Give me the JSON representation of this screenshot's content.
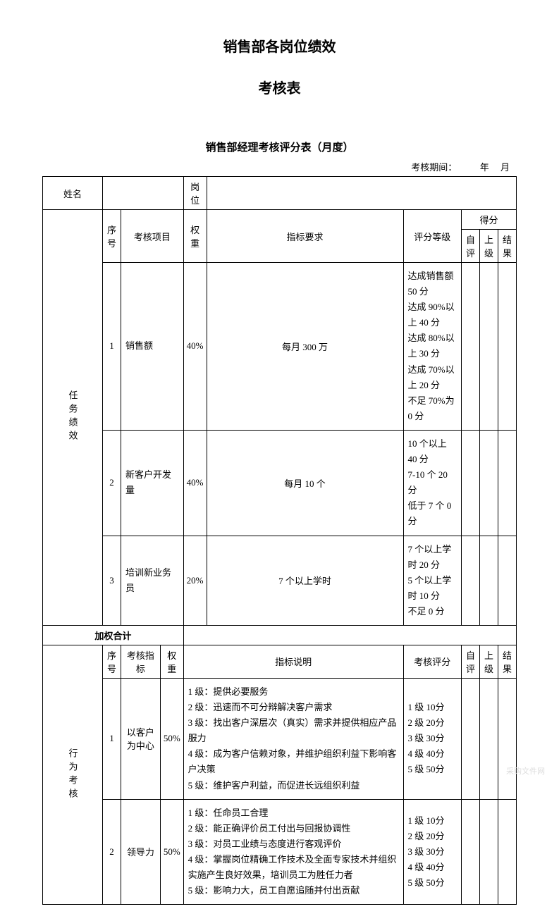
{
  "header": {
    "title1": "销售部各岗位绩效",
    "title2": "考核表",
    "subtitle": "销售部经理考核评分表（月度）",
    "periodLabel": "考核期间：",
    "yearLabel": "年",
    "monthLabel": "月"
  },
  "row1": {
    "nameLabel": "姓名",
    "positionLabel": "岗位"
  },
  "headers": {
    "seqNo": "序号",
    "assessItem": "考核项目",
    "weight": "权重",
    "indicatorReq": "指标要求",
    "scoringLevel": "评分等级",
    "score": "得分",
    "selfEval": "自评",
    "supervisor": "上级",
    "result": "结果",
    "assessIndicator": "考核指标",
    "indicatorDesc": "指标说明",
    "assessScore": "考核评分"
  },
  "sectionA": {
    "label": "任务绩效",
    "rows": [
      {
        "no": "1",
        "item": "销售额",
        "weight": "40%",
        "requirement": "每月 300 万",
        "levels": "达成销售额 50 分\n达成 90%以上 40 分\n达成 80%以上 30 分\n达成 70%以上 20 分\n不足 70%为 0 分"
      },
      {
        "no": "2",
        "item": "新客户开发量",
        "weight": "40%",
        "requirement": "每月 10 个",
        "levels": "10 个以上 40 分\n7-10 个 20 分\n低于 7 个 0 分"
      },
      {
        "no": "3",
        "item": "培训新业务员",
        "weight": "20%",
        "requirement": "7 个以上学时",
        "levels": "7 个以上学时 20 分\n5 个以上学时 10 分\n不足 0 分"
      }
    ],
    "totalLabel": "加权合计"
  },
  "sectionB": {
    "label": "行为考核",
    "rows": [
      {
        "no": "1",
        "item": "以客户为中心",
        "weight": "50%",
        "desc": "1 级：提供必要服务\n2 级：迅速而不可分辩解决客户需求\n3 级：找出客户深层次（真实）需求并提供相应产品服力\n4 级：成为客户信赖对象，并维护组织利益下影响客户决策\n5 级：维护客户利益，而促进长远组织利益",
        "scores": "1 级 10分\n2 级 20分\n3 级 30分\n4 级 40分\n5 级 50分"
      },
      {
        "no": "2",
        "item": "领导力",
        "weight": "50%",
        "desc": "1 级：任命员工合理\n2 级：能正确评价员工付出与回报协调性\n3 级：对员工业绩与态度进行客观评价\n4 级：掌握岗位精确工作技术及全面专家技术并组织实施产生良好效果，培训员工为胜任力者\n5 级：影响力大，员工自愿追随并付出贡献",
        "scores": "1 级 10分\n2 级 20分\n3 级 30分\n4 级 40分\n5 级 50分"
      }
    ]
  },
  "watermark": "采购文件网"
}
